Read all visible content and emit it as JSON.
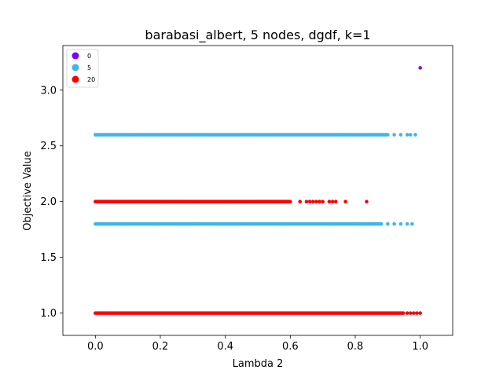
{
  "chart_data": {
    "type": "scatter",
    "title": "barabasi_albert, 5 nodes, dgdf, k=1",
    "xlabel": "Lambda 2",
    "ylabel": "Objective Value",
    "xlim": [
      -0.1,
      1.1
    ],
    "ylim": [
      0.8,
      3.4
    ],
    "xticks": [
      "0.0",
      "0.2",
      "0.4",
      "0.6",
      "0.8",
      "1.0"
    ],
    "yticks": [
      "1.0",
      "1.5",
      "2.0",
      "2.5",
      "3.0"
    ],
    "grid": false,
    "legend_position": "top-left",
    "series": [
      {
        "name": "0",
        "color": "#7f00ff",
        "bands": [
          {
            "y": 3.2,
            "x_start": 1.0,
            "x_end": 1.0,
            "dense_until": 1.0,
            "sparse_x": []
          }
        ]
      },
      {
        "name": "5",
        "color": "#40b6e6",
        "bands": [
          {
            "y": 2.6,
            "x_start": 0.0,
            "x_end": 0.985,
            "dense_until": 0.9,
            "sparse_x": [
              0.92,
              0.94,
              0.96,
              0.97,
              0.985
            ]
          },
          {
            "y": 1.8,
            "x_start": 0.0,
            "x_end": 0.975,
            "dense_until": 0.88,
            "sparse_x": [
              0.9,
              0.92,
              0.94,
              0.96,
              0.975
            ]
          }
        ]
      },
      {
        "name": "20",
        "color": "#ff0000",
        "bands": [
          {
            "y": 2.0,
            "x_start": 0.0,
            "x_end": 0.835,
            "dense_until": 0.6,
            "sparse_x": [
              0.63,
              0.65,
              0.66,
              0.67,
              0.68,
              0.69,
              0.7,
              0.72,
              0.73,
              0.74,
              0.77,
              0.835
            ]
          },
          {
            "y": 1.0,
            "x_start": 0.0,
            "x_end": 1.0,
            "dense_until": 0.95,
            "sparse_x": [
              0.96,
              0.97,
              0.98,
              0.99,
              1.0
            ]
          }
        ]
      }
    ]
  }
}
